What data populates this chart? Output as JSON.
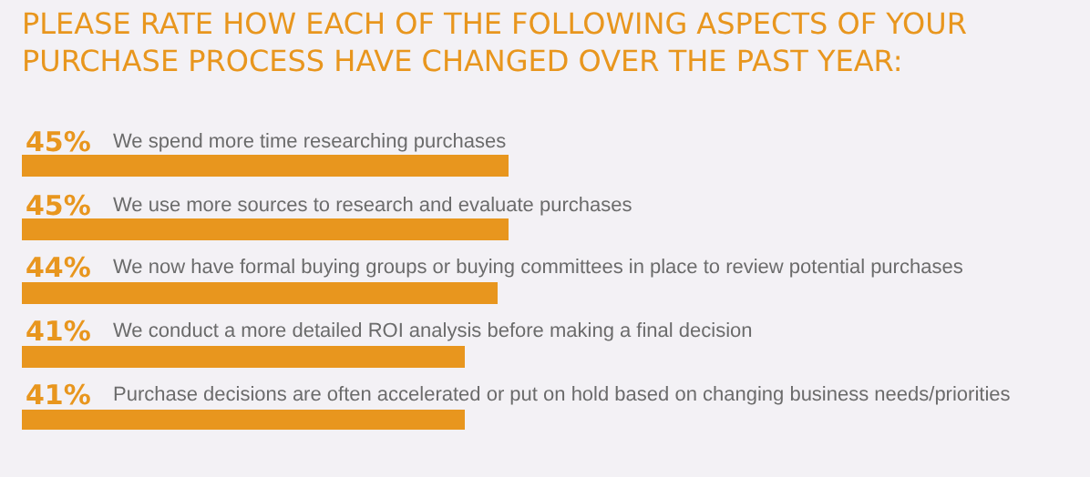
{
  "chart_data": {
    "type": "bar",
    "orientation": "horizontal",
    "title": "PLEASE RATE HOW EACH OF THE FOLLOWING ASPECTS OF YOUR\nPURCHASE PROCESS HAVE CHANGED OVER THE PAST YEAR:",
    "categories": [
      "We spend more time researching purchases",
      "We use more sources to research and evaluate purchases",
      "We now have formal buying groups or buying committees in place to review potential purchases",
      "We conduct a more detailed ROI analysis before making a final decision",
      "Purchase decisions are often accelerated or put on hold based on changing business needs/priorities"
    ],
    "values": [
      45,
      45,
      44,
      41,
      41
    ],
    "value_labels": [
      "45%",
      "45%",
      "44%",
      "41%",
      "41%"
    ],
    "color": "#e8961e",
    "tick_labels": false,
    "grid": false,
    "legend": false
  }
}
